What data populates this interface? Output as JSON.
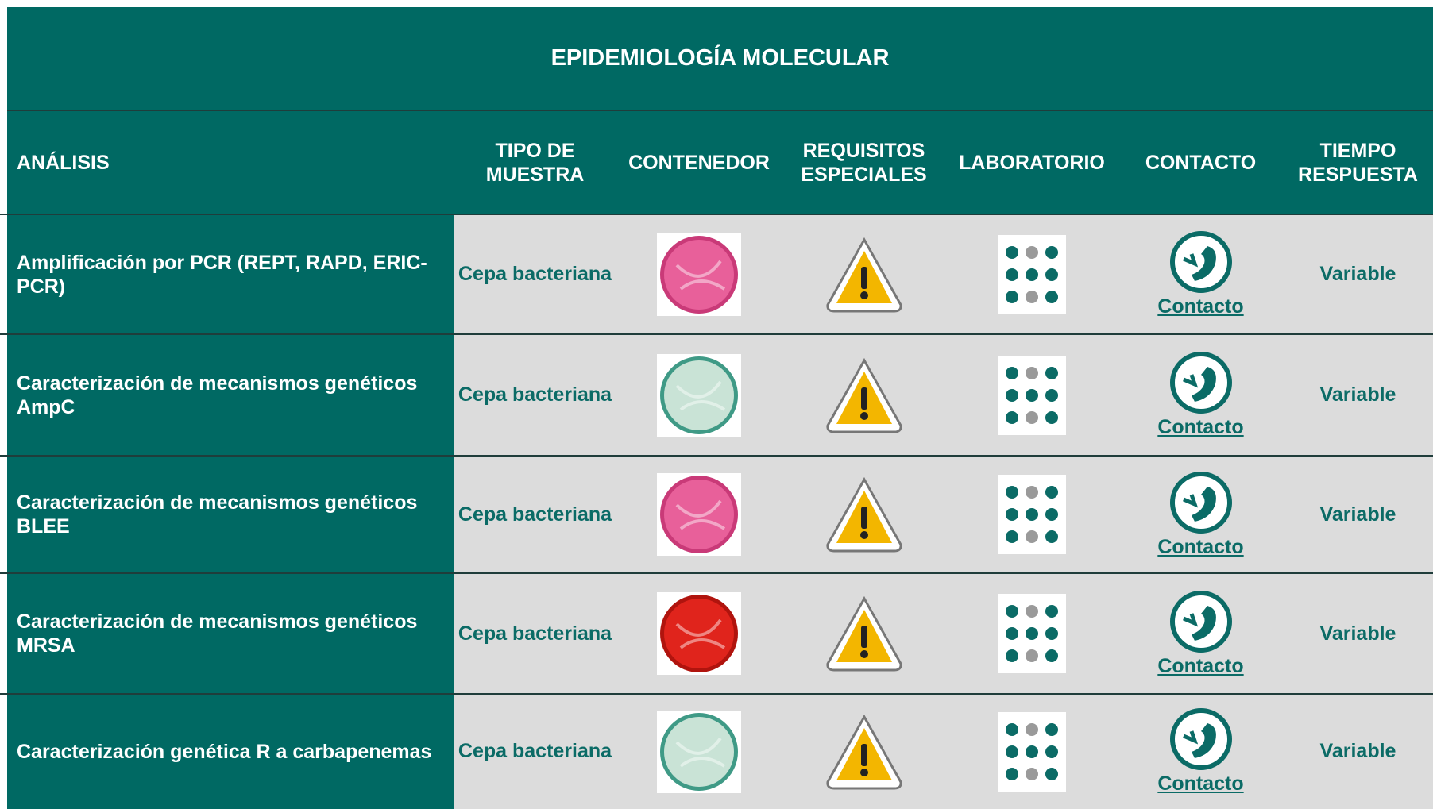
{
  "title": "EPIDEMIOLOGÍA MOLECULAR",
  "headers": [
    "ANÁLISIS",
    "TIPO DE MUESTRA",
    "CONTENEDOR",
    "REQUISITOS ESPECIALES",
    "LABORATORIO",
    "CONTACTO",
    "TIEMPO RESPUESTA"
  ],
  "rows": [
    {
      "analysis": "Amplificación por PCR (REPT, RAPD, ERIC-PCR)",
      "sample": "Cepa bacteriana",
      "contact": "Contacto",
      "time": "Variable"
    },
    {
      "analysis": "Caracterización de mecanismos genéticos AmpC",
      "sample": "Cepa bacteriana",
      "contact": "Contacto",
      "time": "Variable"
    },
    {
      "analysis": "Caracterización de mecanismos genéticos BLEE",
      "sample": "Cepa bacteriana",
      "contact": "Contacto",
      "time": "Variable"
    },
    {
      "analysis": "Caracterización de mecanismos genéticos MRSA",
      "sample": "Cepa bacteriana",
      "contact": "Contacto",
      "time": "Variable"
    },
    {
      "analysis": "Caracterización genética R a carbapenemas",
      "sample": "Cepa bacteriana",
      "contact": "Contacto",
      "time": "Variable"
    }
  ]
}
